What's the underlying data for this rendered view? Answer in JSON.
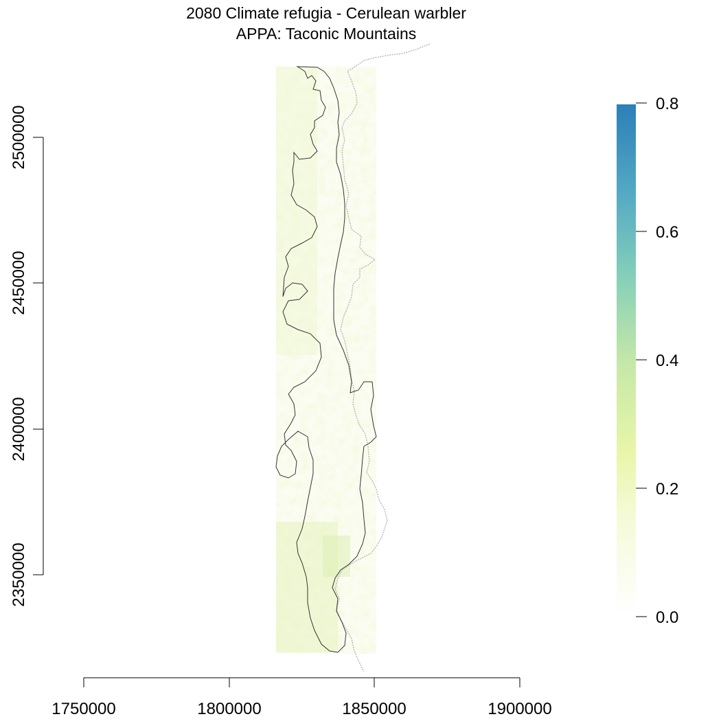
{
  "title": "2080 Climate refugia - Cerulean warbler",
  "subtitle": "APPA: Taconic Mountains",
  "x_axis": {
    "ticks": [
      "1750000",
      "1800000",
      "1850000",
      "1900000"
    ]
  },
  "y_axis": {
    "ticks": [
      "2350000",
      "2400000",
      "2450000",
      "2500000"
    ]
  },
  "legend": {
    "ticks": [
      "0.0",
      "0.2",
      "0.4",
      "0.6",
      "0.8"
    ],
    "colors": [
      "#ffffff",
      "#f1f9c8",
      "#e9f6a9",
      "#b7e2b0",
      "#80ceba",
      "#4fa6c6",
      "#2c7fb8"
    ],
    "range": [
      0,
      0.8
    ]
  },
  "map": {
    "raster_color": "#e8f2c2",
    "boundary_color": "#333333",
    "state_line_color": "#b8b8b8"
  }
}
